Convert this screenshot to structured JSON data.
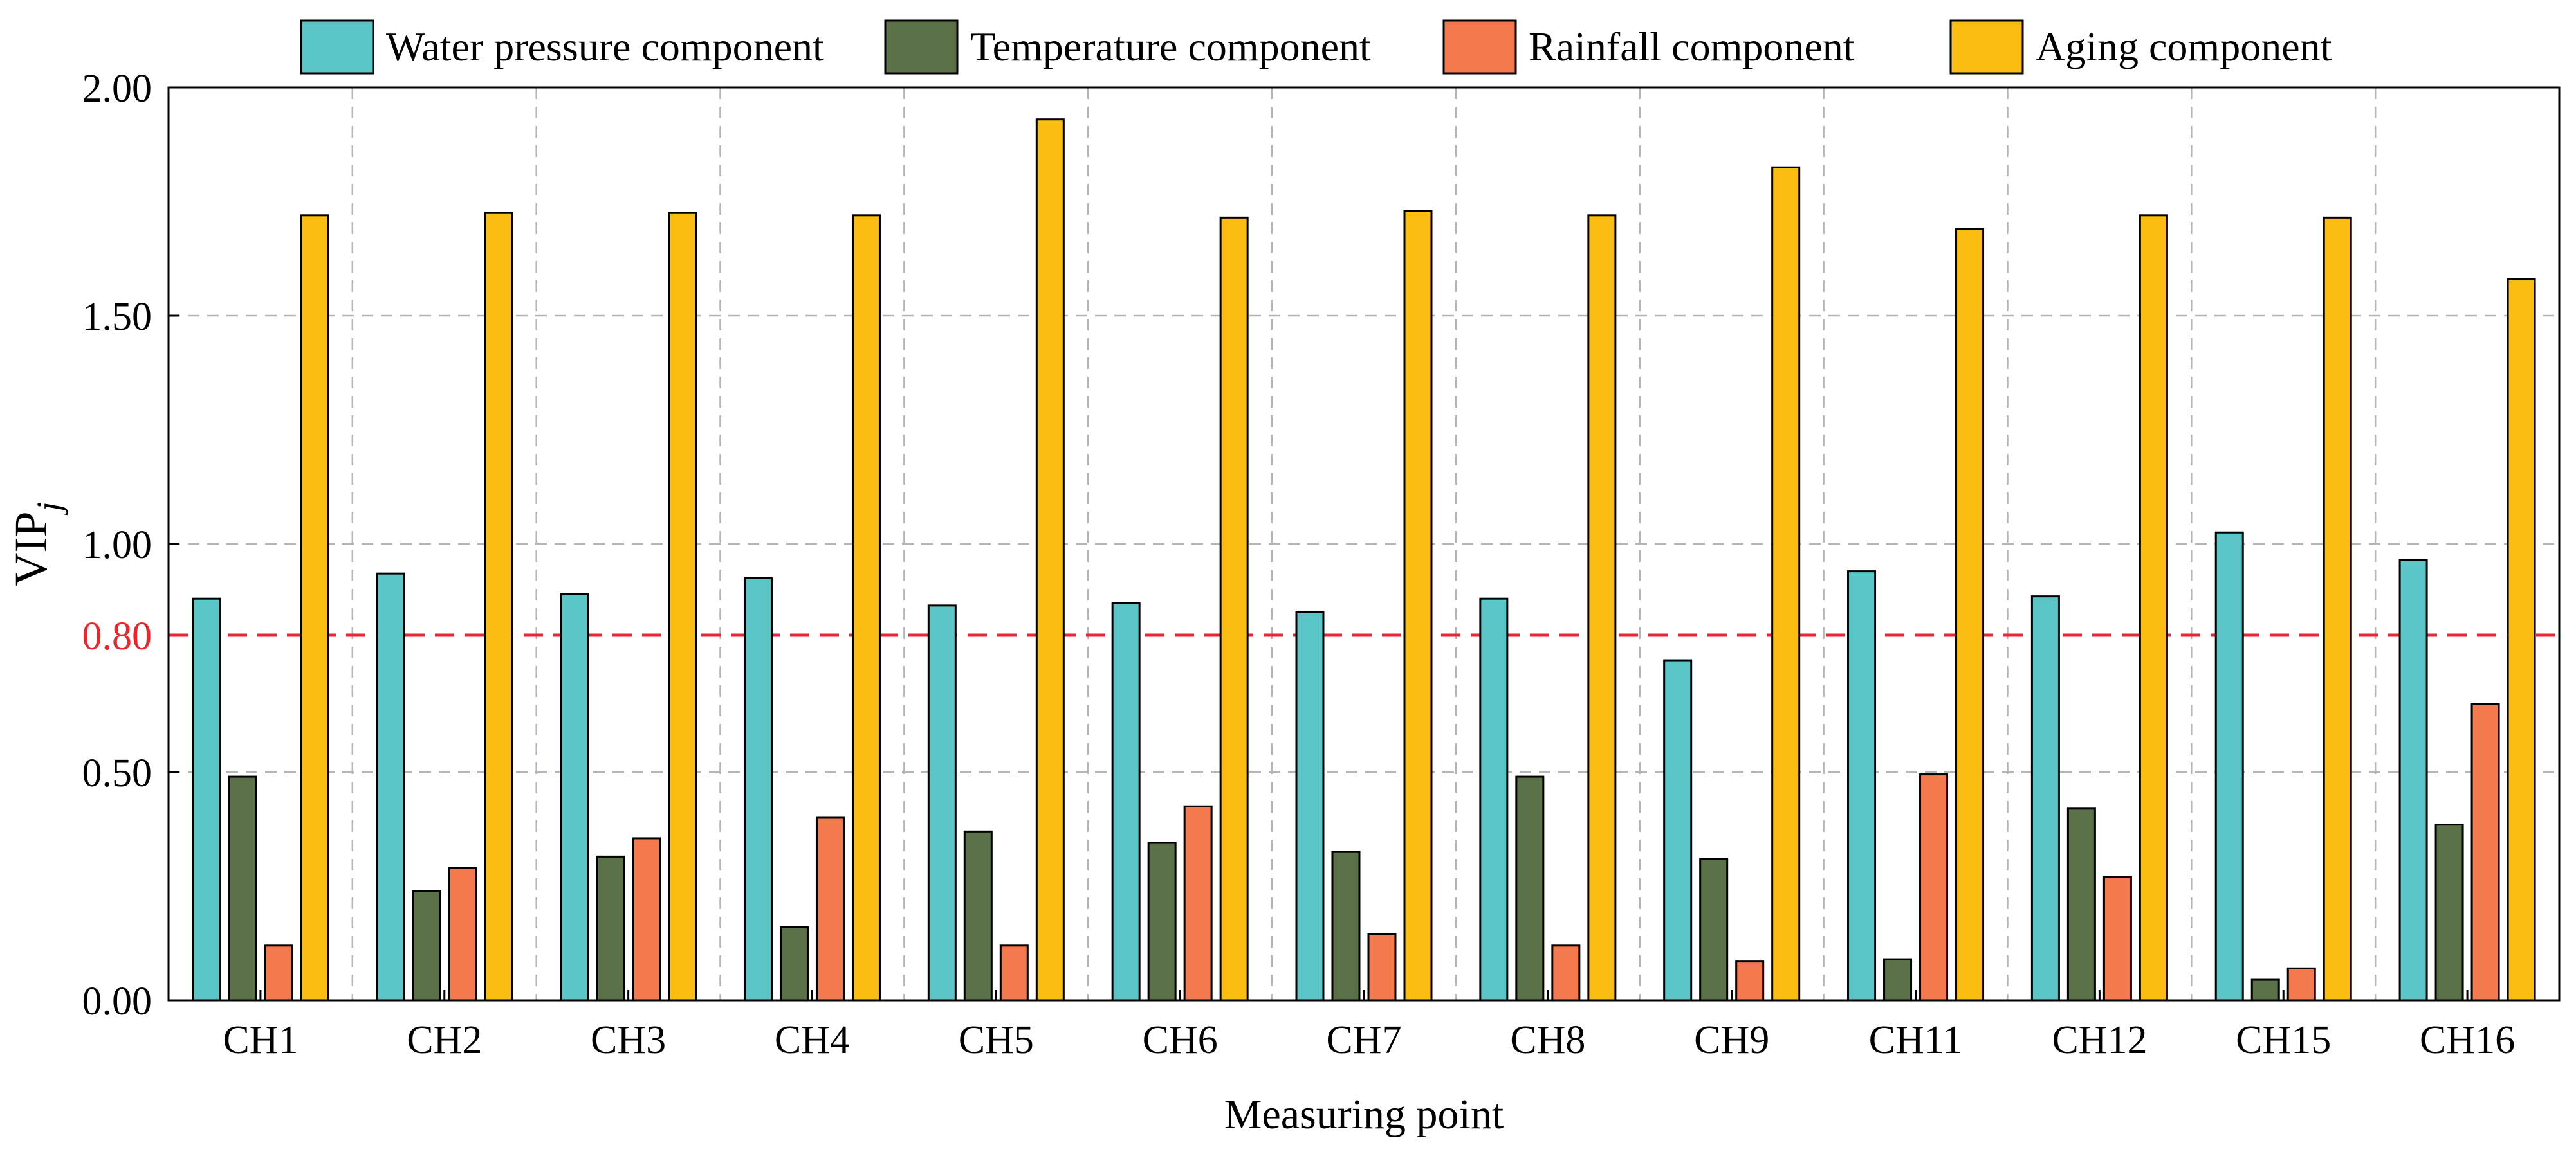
{
  "chart_data": {
    "type": "bar",
    "xlabel": "Measuring point",
    "ylabel": "VIP",
    "ylabel_subscript": "j",
    "ylim": [
      0,
      2
    ],
    "yticks": [
      "0.00",
      "0.50",
      "1.00",
      "1.50",
      "2.00"
    ],
    "grid": true,
    "legend": "top",
    "categories": [
      "CH1",
      "CH2",
      "CH3",
      "CH4",
      "CH5",
      "CH6",
      "CH7",
      "CH8",
      "CH9",
      "CH11",
      "CH12",
      "CH15",
      "CH16"
    ],
    "series": [
      {
        "name": "Water pressure component",
        "color": "#5bc5c8",
        "values": [
          0.88,
          0.935,
          0.89,
          0.925,
          0.865,
          0.87,
          0.85,
          0.88,
          0.745,
          0.94,
          0.885,
          1.025,
          0.965
        ]
      },
      {
        "name": "Temperature component",
        "color": "#5b7147",
        "values": [
          0.49,
          0.24,
          0.315,
          0.16,
          0.37,
          0.345,
          0.325,
          0.49,
          0.31,
          0.09,
          0.42,
          0.045,
          0.385
        ]
      },
      {
        "name": "Rainfall component",
        "color": "#f27a4e",
        "values": [
          0.12,
          0.29,
          0.355,
          0.4,
          0.12,
          0.425,
          0.145,
          0.12,
          0.085,
          0.495,
          0.27,
          0.07,
          0.65
        ]
      },
      {
        "name": "Aging component",
        "color": "#fbbd12",
        "values": [
          1.72,
          1.725,
          1.725,
          1.72,
          1.93,
          1.715,
          1.73,
          1.72,
          1.825,
          1.69,
          1.72,
          1.715,
          1.58
        ]
      }
    ],
    "threshold": {
      "value": 0.8,
      "label": "0.80",
      "color": "#e8262b"
    }
  }
}
